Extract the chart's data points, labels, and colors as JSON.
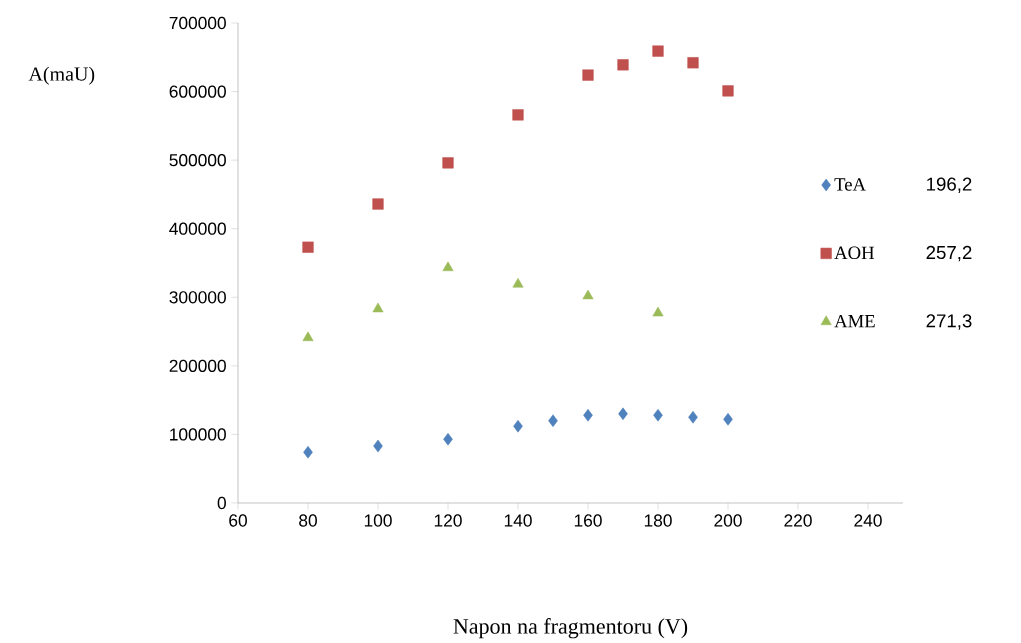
{
  "chart_data": {
    "type": "scatter",
    "xlabel": "Napon na fragmentoru (V)",
    "ylabel": "A(maU)",
    "xlim": [
      60,
      250
    ],
    "xticks": [
      60,
      80,
      100,
      120,
      140,
      160,
      180,
      200,
      220,
      240
    ],
    "ylim": [
      0,
      700000
    ],
    "yticks": [
      0,
      100000,
      200000,
      300000,
      400000,
      500000,
      600000,
      700000
    ],
    "grid": false,
    "legend": "right",
    "annotations": [
      "196,2",
      "257,2",
      "271,3"
    ],
    "series": [
      {
        "name": "TeA",
        "color": "#4f81bd",
        "marker": "diamond",
        "x": [
          80,
          100,
          120,
          140,
          150,
          160,
          170,
          180,
          190,
          200
        ],
        "values": [
          74000,
          83000,
          93000,
          112000,
          120000,
          128000,
          130000,
          128000,
          125000,
          122000
        ]
      },
      {
        "name": "AOH",
        "color": "#c0504d",
        "marker": "square",
        "x": [
          80,
          100,
          120,
          140,
          160,
          170,
          180,
          190,
          200
        ],
        "values": [
          373000,
          436000,
          496000,
          566000,
          624000,
          639000,
          659000,
          642000,
          601000
        ]
      },
      {
        "name": "AME",
        "color": "#9bbb59",
        "marker": "triangle",
        "x": [
          80,
          100,
          120,
          140,
          160,
          180
        ],
        "values": [
          241000,
          283000,
          343000,
          319000,
          302000,
          277000
        ]
      }
    ]
  }
}
